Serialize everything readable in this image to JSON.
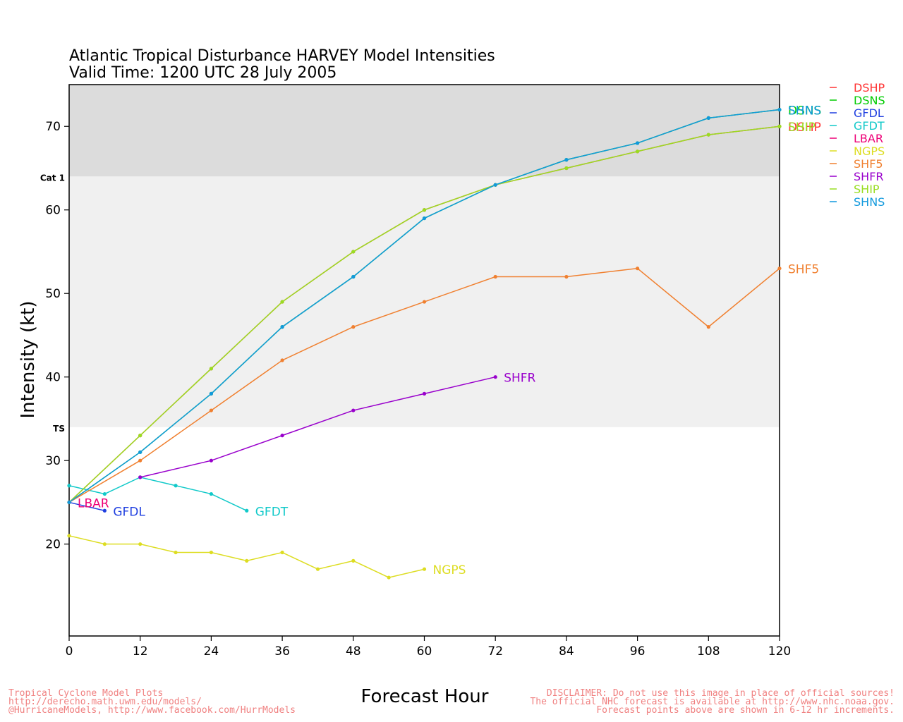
{
  "colors": {
    "band_hurricane": "#dcdcdc",
    "band_ts": "#f0f0f0",
    "footer": "#f08080"
  },
  "chart_data": {
    "type": "line",
    "title": "Atlantic Tropical Disturbance HARVEY Model Intensities",
    "subtitle": "Valid Time: 1200 UTC 28 July 2005",
    "xlabel": "Forecast Hour",
    "ylabel": "Intensity (kt)",
    "xlim": [
      0,
      120
    ],
    "ylim": [
      9,
      75
    ],
    "xticks": [
      0,
      12,
      24,
      36,
      48,
      60,
      72,
      84,
      96,
      108,
      120
    ],
    "yticks": [
      20,
      30,
      40,
      50,
      60,
      70
    ],
    "thresholds": [
      {
        "label": "TS",
        "value": 34
      },
      {
        "label": "Cat 1",
        "value": 64
      }
    ],
    "series": [
      {
        "name": "DSHP",
        "color": "#ff3333",
        "x": [
          0,
          12,
          24,
          36,
          48,
          60,
          72,
          84,
          96,
          108,
          120
        ],
        "y": [
          25,
          33,
          41,
          49,
          55,
          60,
          63,
          65,
          67,
          69,
          70
        ]
      },
      {
        "name": "DSNS",
        "color": "#00cc00",
        "x": [
          0,
          12,
          24,
          36,
          48,
          60,
          72,
          84,
          96,
          108,
          120
        ],
        "y": [
          25,
          31,
          38,
          46,
          52,
          59,
          63,
          66,
          68,
          71,
          72
        ]
      },
      {
        "name": "GFDL",
        "color": "#1f3fe0",
        "x": [
          0,
          6
        ],
        "y": [
          25,
          24
        ]
      },
      {
        "name": "GFDT",
        "color": "#11c9c9",
        "x": [
          0,
          6,
          12,
          18,
          24,
          30
        ],
        "y": [
          27,
          26,
          28,
          27,
          26,
          24
        ]
      },
      {
        "name": "LBAR",
        "color": "#ee0077",
        "x": [
          0
        ],
        "y": [
          25
        ]
      },
      {
        "name": "NGPS",
        "color": "#dddd22",
        "x": [
          0,
          6,
          12,
          18,
          24,
          30,
          36,
          42,
          48,
          54,
          60
        ],
        "y": [
          21,
          20,
          20,
          19,
          19,
          18,
          19,
          17,
          18,
          16,
          17
        ]
      },
      {
        "name": "SHF5",
        "color": "#f08030",
        "x": [
          0,
          12,
          24,
          36,
          48,
          60,
          72,
          84,
          96,
          108,
          120
        ],
        "y": [
          25,
          30,
          36,
          42,
          46,
          49,
          52,
          52,
          53,
          46,
          53
        ]
      },
      {
        "name": "SHFR",
        "color": "#9900cc",
        "x": [
          12,
          24,
          36,
          48,
          60,
          72
        ],
        "y": [
          28,
          30,
          33,
          36,
          38,
          40
        ]
      },
      {
        "name": "SHIP",
        "color": "#99dd22",
        "x": [
          0,
          12,
          24,
          36,
          48,
          60,
          72,
          84,
          96,
          108,
          120
        ],
        "y": [
          25,
          33,
          41,
          49,
          55,
          60,
          63,
          65,
          67,
          69,
          70
        ]
      },
      {
        "name": "SHNS",
        "color": "#1199dd",
        "x": [
          0,
          12,
          24,
          36,
          48,
          60,
          72,
          84,
          96,
          108,
          120
        ],
        "y": [
          25,
          31,
          38,
          46,
          52,
          59,
          63,
          66,
          68,
          71,
          72
        ]
      }
    ],
    "legend": {
      "position": "top-right-outside"
    }
  },
  "footer": {
    "left": [
      "Tropical Cyclone Model Plots",
      "http://derecho.math.uwm.edu/models/",
      "@HurricaneModels, http://www.facebook.com/HurrModels"
    ],
    "right": [
      "DISCLAIMER: Do not use this image in place of official sources!",
      "The official NHC forecast is available at http://www.nhc.noaa.gov.",
      "Forecast points above are shown in 6-12 hr increments."
    ]
  }
}
